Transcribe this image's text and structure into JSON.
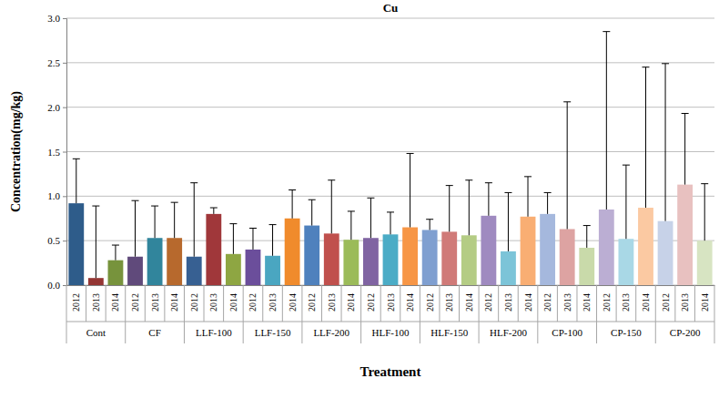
{
  "chart_data": {
    "type": "bar",
    "title": "Cu",
    "x_label": "Treatment",
    "y_label": "Concentration(mg/kg)",
    "categories": [
      "2012",
      "2013",
      "2014",
      "2012",
      "2013",
      "2014",
      "2012",
      "2013",
      "2014",
      "2012",
      "2013",
      "2014",
      "2012",
      "2013",
      "2014",
      "2012",
      "2013",
      "2014",
      "2012",
      "2013",
      "2014",
      "2012",
      "2013",
      "2014",
      "2012",
      "2013",
      "2014",
      "2012",
      "2013",
      "2014",
      "2012",
      "2013",
      "2014"
    ],
    "groups": [
      "Cont",
      "CF",
      "LLF-100",
      "LLF-150",
      "LLF-200",
      "HLF-100",
      "HLF-150",
      "HLF-200",
      "CP-100",
      "CP-150",
      "CP-200"
    ],
    "values": [
      0.92,
      0.08,
      0.28,
      0.32,
      0.53,
      0.53,
      0.32,
      0.8,
      0.35,
      0.4,
      0.33,
      0.75,
      0.67,
      0.58,
      0.51,
      0.53,
      0.57,
      0.65,
      0.62,
      0.6,
      0.56,
      0.78,
      0.38,
      0.77,
      0.8,
      0.63,
      0.42,
      0.85,
      0.52,
      0.87,
      0.72,
      1.13,
      0.5
    ],
    "errors": [
      0.5,
      0.81,
      0.17,
      0.63,
      0.36,
      0.4,
      0.83,
      0.07,
      0.34,
      0.24,
      0.35,
      0.32,
      0.29,
      0.6,
      0.32,
      0.45,
      0.25,
      0.83,
      0.12,
      0.52,
      0.62,
      0.37,
      0.66,
      0.45,
      0.24,
      1.43,
      0.25,
      2.0,
      0.83,
      1.58,
      1.77,
      0.8,
      0.64
    ],
    "colors": [
      "#2E5C8A",
      "#943634",
      "#77933C",
      "#604A7B",
      "#31859C",
      "#B7692D",
      "#376092",
      "#A0373A",
      "#8EA642",
      "#6B4E9B",
      "#4AA6C1",
      "#F08B2C",
      "#4F81BD",
      "#C0504D",
      "#9BBB59",
      "#8064A2",
      "#4BACC6",
      "#F79646",
      "#7F9FD0",
      "#D07A78",
      "#B4CC84",
      "#9F8AC0",
      "#7CC4D8",
      "#F9AE73",
      "#A5B8DD",
      "#DDA3A2",
      "#C9DAAA",
      "#BBAED3",
      "#A9D8E6",
      "#FBC9A2",
      "#C7D2E8",
      "#E8C1C0",
      "#D7E4C2"
    ],
    "ylim": [
      0,
      3
    ],
    "yticks": [
      {
        "value": 0,
        "label": "0.0"
      },
      {
        "value": 0.5,
        "label": "0.5"
      },
      {
        "value": 1,
        "label": "1.0"
      },
      {
        "value": 1.5,
        "label": "1.5"
      },
      {
        "value": 2,
        "label": "2.0"
      },
      {
        "value": 2.5,
        "label": "2.5"
      },
      {
        "value": 3,
        "label": "3.0"
      }
    ],
    "grid": true
  }
}
